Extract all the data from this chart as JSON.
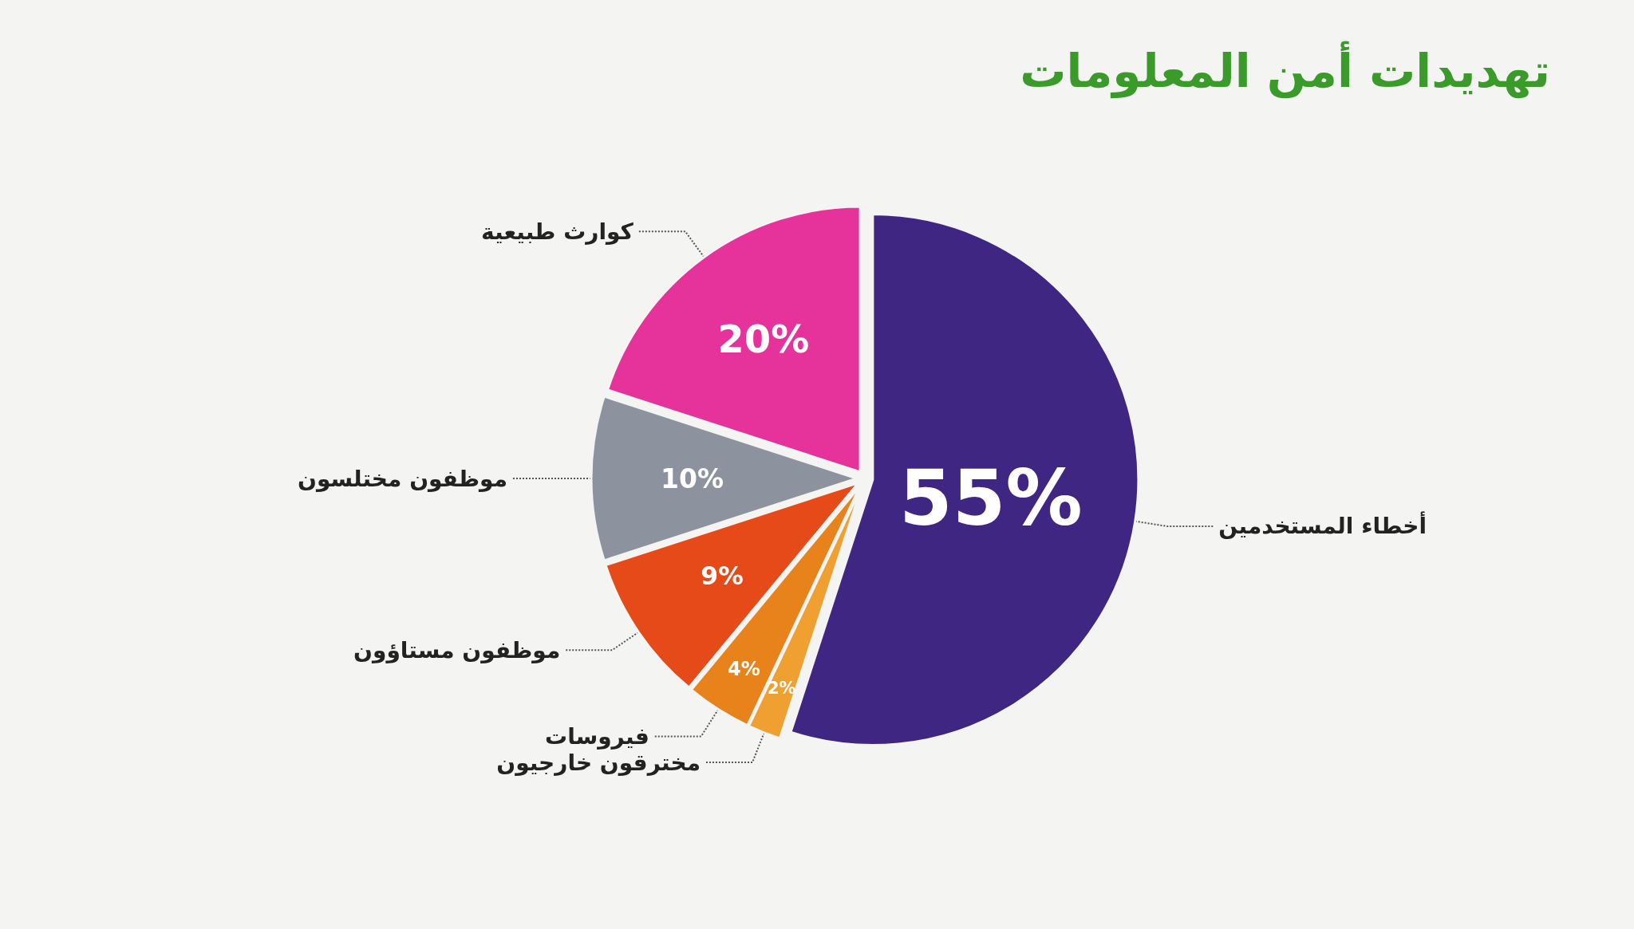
{
  "chart_data": {
    "type": "pie",
    "title": "تهديدات أمن المعلومات",
    "categories": [
      "أخطاء المستخدمين",
      "مخترقون خارجيون",
      "فيروسات",
      "موظفون مستاؤون",
      "موظفون مختلسون",
      "كوارث طبيعية"
    ],
    "values": [
      55,
      2,
      4,
      9,
      10,
      20
    ],
    "colors": [
      "#3f2683",
      "#f0a030",
      "#e8821a",
      "#e64a19",
      "#8c939e",
      "#e6339b"
    ],
    "value_labels": [
      "55%",
      "2%",
      "4%",
      "9%",
      "10%",
      "20%"
    ]
  }
}
